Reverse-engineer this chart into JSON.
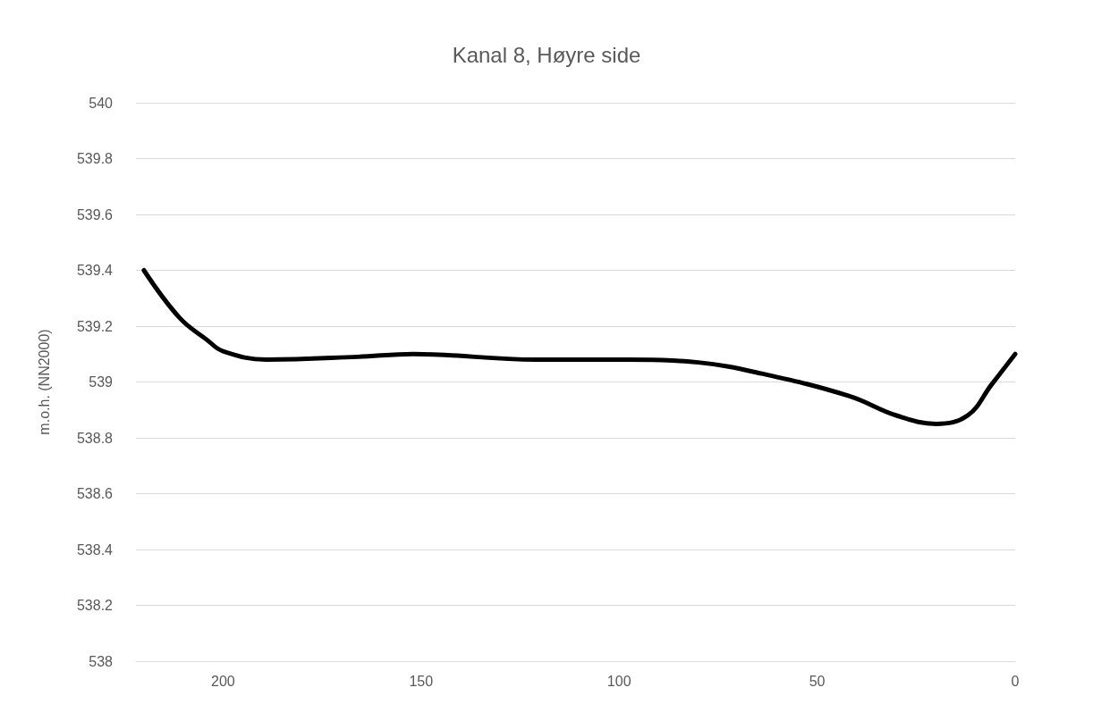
{
  "chart_data": {
    "type": "line",
    "title": "Kanal 8, Høyre side",
    "ylabel": "m.o.h. (NN2000)",
    "series": [
      {
        "color": "#000000",
        "x": [
          220,
          211,
          204,
          200,
          189,
          166,
          152,
          121,
          98,
          80,
          64,
          42,
          30,
          20,
          12,
          6,
          0
        ],
        "values": [
          539.4,
          539.23,
          539.15,
          539.11,
          539.08,
          539.09,
          539.1,
          539.08,
          539.08,
          539.07,
          539.03,
          538.95,
          538.88,
          538.85,
          538.88,
          538.99,
          539.1
        ]
      }
    ],
    "xlim": [
      222,
      0
    ],
    "xticks": [
      200,
      150,
      100,
      50,
      0
    ],
    "ylim": [
      538,
      540
    ],
    "yticks": [
      538,
      538.2,
      538.4,
      538.6,
      538.8,
      539,
      539.2,
      539.4,
      539.6,
      539.8,
      540
    ],
    "grid": "y",
    "marker": "none",
    "line_style": "solid"
  }
}
